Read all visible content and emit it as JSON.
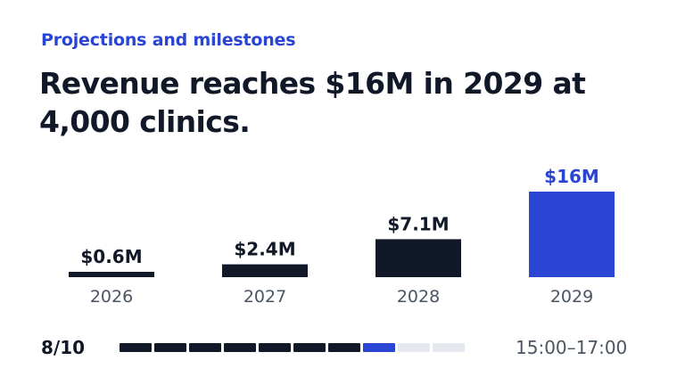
{
  "slide": {
    "eyebrow": "Projections and milestones",
    "headline": "Revenue reaches $16M in 2029 at 4,000 clinics."
  },
  "colors": {
    "accent": "#2a45d4",
    "dark": "#111827",
    "muted": "#4b5563",
    "track": "#e5e8ef"
  },
  "chart_data": {
    "type": "bar",
    "title": "",
    "xlabel": "",
    "ylabel": "",
    "categories": [
      "2026",
      "2027",
      "2028",
      "2029"
    ],
    "values": [
      0.6,
      2.4,
      7.1,
      16
    ],
    "value_labels": [
      "$0.6M",
      "$2.4M",
      "$7.1M",
      "$16M"
    ],
    "highlight": "2029",
    "ylim": [
      0,
      16
    ],
    "grid": false,
    "legend": "none"
  },
  "footer": {
    "page": "8/10",
    "progress_total": 10,
    "progress_current": 8,
    "time_range": "15:00–17:00"
  }
}
